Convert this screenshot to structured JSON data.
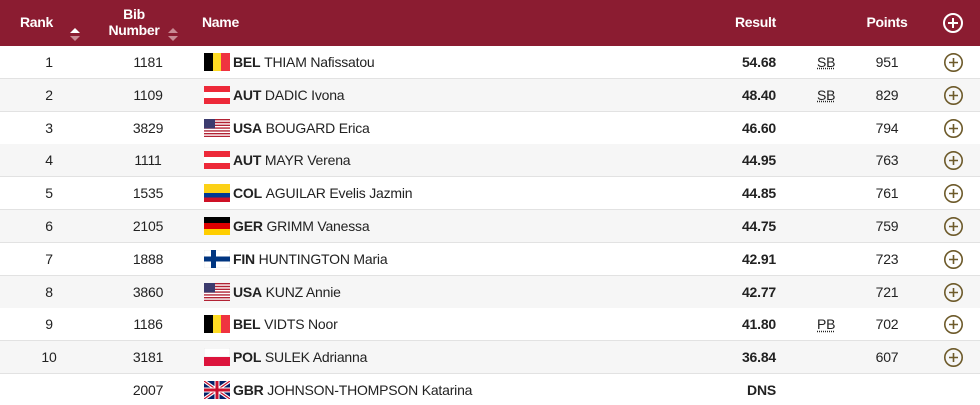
{
  "header": {
    "rank": "Rank",
    "bib": "Bib Number",
    "name": "Name",
    "result": "Result",
    "points": "Points"
  },
  "rows": [
    {
      "rank": "1",
      "bib": "1181",
      "country": "BEL",
      "name": "THIAM Nafissatou",
      "result": "54.68",
      "mark": "SB",
      "points": "951"
    },
    {
      "rank": "2",
      "bib": "1109",
      "country": "AUT",
      "name": "DADIC Ivona",
      "result": "48.40",
      "mark": "SB",
      "points": "829"
    },
    {
      "rank": "3",
      "bib": "3829",
      "country": "USA",
      "name": "BOUGARD Erica",
      "result": "46.60",
      "mark": null,
      "points": "794"
    },
    {
      "rank": "4",
      "bib": "1111",
      "country": "AUT",
      "name": "MAYR Verena",
      "result": "44.95",
      "mark": null,
      "points": "763"
    },
    {
      "rank": "5",
      "bib": "1535",
      "country": "COL",
      "name": "AGUILAR Evelis Jazmin",
      "result": "44.85",
      "mark": null,
      "points": "761"
    },
    {
      "rank": "6",
      "bib": "2105",
      "country": "GER",
      "name": "GRIMM Vanessa",
      "result": "44.75",
      "mark": null,
      "points": "759"
    },
    {
      "rank": "7",
      "bib": "1888",
      "country": "FIN",
      "name": "HUNTINGTON Maria",
      "result": "42.91",
      "mark": null,
      "points": "723"
    },
    {
      "rank": "8",
      "bib": "3860",
      "country": "USA",
      "name": "KUNZ Annie",
      "result": "42.77",
      "mark": null,
      "points": "721"
    },
    {
      "rank": "9",
      "bib": "1186",
      "country": "BEL",
      "name": "VIDTS Noor",
      "result": "41.80",
      "mark": "PB",
      "points": "702"
    },
    {
      "rank": "10",
      "bib": "3181",
      "country": "POL",
      "name": "SULEK Adrianna",
      "result": "36.84",
      "mark": null,
      "points": "607"
    },
    {
      "rank": null,
      "bib": "2007",
      "country": "GBR",
      "name": "JOHNSON-THOMPSON Katarina",
      "result": "DNS",
      "mark": null,
      "points": null
    }
  ]
}
